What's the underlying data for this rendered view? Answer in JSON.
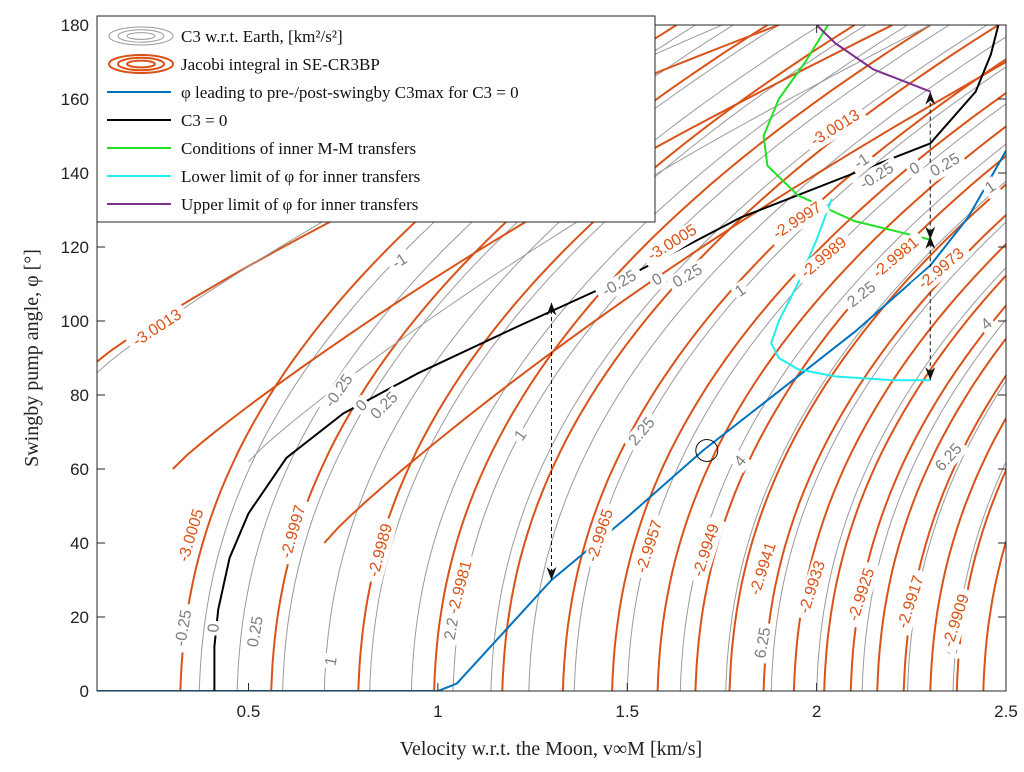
{
  "chart_data": {
    "type": "line",
    "xlabel": "Velocity w.r.t. the Moon, v∞M [km/s]",
    "ylabel": "Swingby pump angle, φ [°]",
    "xlim": [
      0.1,
      2.5
    ],
    "ylim": [
      0,
      180
    ],
    "x_ticks": [
      0.5,
      1,
      1.5,
      2,
      2.5
    ],
    "x_tick_labels": [
      "0.5",
      "1",
      "1.5",
      "2",
      "2.5"
    ],
    "y_ticks": [
      0,
      20,
      40,
      60,
      80,
      100,
      120,
      140,
      160,
      180
    ],
    "y_tick_labels": [
      "0",
      "20",
      "40",
      "60",
      "80",
      "100",
      "120",
      "140",
      "160",
      "180"
    ],
    "grid": false,
    "legend_position": "top-left",
    "legend": [
      {
        "label": "C3 w.r.t. Earth, [km²/s²]",
        "style": "gray concentric contours"
      },
      {
        "label": "Jacobi integral in SE-CR3BP",
        "style": "orange concentric contours"
      },
      {
        "label": "φ leading to pre-/post-swingby C3max for C3 = 0",
        "style": "blue line"
      },
      {
        "label": "C3 = 0",
        "style": "black line"
      },
      {
        "label": "Conditions of inner M-M transfers",
        "style": "green line"
      },
      {
        "label": "Lower limit of φ for inner transfers",
        "style": "cyan line"
      },
      {
        "label": "Upper limit of φ for inner transfers",
        "style": "purple line"
      }
    ],
    "colors": {
      "c3_contours": "#9a9a9a",
      "jacobi_contours": "#d95319",
      "phi_cmax": "#0072bd",
      "c3_zero": "#000000",
      "inner_conditions": "#22e022",
      "lower_limit": "#22eeee",
      "upper_limit": "#7e2f8e",
      "jacobi_label": "#d95319",
      "c3_label": "#808080"
    },
    "series": [
      {
        "name": "φ leading to pre-/post-swingby C3max for C3 = 0",
        "x": [
          0.1,
          1.0,
          1.05,
          1.3,
          1.5,
          1.7,
          1.9,
          2.1,
          2.3,
          2.4,
          2.45,
          2.5
        ],
        "y": [
          0,
          0,
          2,
          30,
          47,
          65,
          81,
          97,
          115,
          128,
          137,
          146
        ]
      },
      {
        "name": "C3 = 0",
        "x": [
          0.41,
          0.41,
          0.42,
          0.45,
          0.5,
          0.6,
          0.75,
          0.95,
          1.2,
          1.5,
          1.8,
          2.1,
          2.3,
          2.42,
          2.46,
          2.48
        ],
        "y": [
          0,
          12,
          22,
          36,
          48,
          63,
          75,
          86,
          98,
          112,
          128,
          140,
          148,
          162,
          172,
          180
        ]
      },
      {
        "name": "Conditions of inner M-M transfers",
        "x": [
          2.03,
          1.97,
          1.9,
          1.86,
          1.87,
          1.95,
          2.1,
          2.3
        ],
        "y": [
          180,
          170,
          160,
          150,
          142,
          134,
          127,
          122
        ]
      },
      {
        "name": "Lower limit of φ for inner transfers",
        "x": [
          2.04,
          2.0,
          1.95,
          1.9,
          1.88,
          1.9,
          1.95,
          2.05,
          2.2,
          2.3
        ],
        "y": [
          133,
          122,
          110,
          100,
          94,
          90,
          87,
          85,
          84,
          84
        ]
      },
      {
        "name": "Upper limit of φ for inner transfers",
        "x": [
          2.0,
          2.05,
          2.15,
          2.3
        ],
        "y": [
          180,
          175,
          168,
          162
        ]
      }
    ],
    "arrows": [
      {
        "x": 1.3,
        "y1": 30,
        "y2": 105
      },
      {
        "x": 2.3,
        "y1": 84,
        "y2": 123
      },
      {
        "x": 2.3,
        "y1": 122,
        "y2": 162
      }
    ],
    "marker": {
      "x": 1.71,
      "y": 65
    },
    "jacobi_contour_labels": [
      {
        "text": "-3.0013",
        "x": 2.05,
        "y": 152,
        "angle": -32
      },
      {
        "text": "-3.0013",
        "x": 0.26,
        "y": 98,
        "angle": -33
      },
      {
        "text": "-3.0005",
        "x": 1.62,
        "y": 121,
        "angle": -32
      },
      {
        "text": "-3.0005",
        "x": 0.35,
        "y": 42,
        "angle": -73
      },
      {
        "text": "-2.9997",
        "x": 1.95,
        "y": 127,
        "angle": -33
      },
      {
        "text": "-2.9997",
        "x": 0.62,
        "y": 43,
        "angle": -74
      },
      {
        "text": "-2.9989",
        "x": 2.02,
        "y": 117,
        "angle": -40
      },
      {
        "text": "-2.9989",
        "x": 0.85,
        "y": 38,
        "angle": -75
      },
      {
        "text": "-2.9981",
        "x": 2.21,
        "y": 117,
        "angle": -40
      },
      {
        "text": "-2.9981",
        "x": 1.06,
        "y": 28,
        "angle": -75
      },
      {
        "text": "-2.9973",
        "x": 2.33,
        "y": 114,
        "angle": -40
      },
      {
        "text": "-2.9965",
        "x": 1.43,
        "y": 42,
        "angle": -72
      },
      {
        "text": "-2.9957",
        "x": 1.56,
        "y": 39,
        "angle": -72
      },
      {
        "text": "-2.9949",
        "x": 1.71,
        "y": 38,
        "angle": -72
      },
      {
        "text": "-2.9941",
        "x": 1.86,
        "y": 33,
        "angle": -72
      },
      {
        "text": "-2.9933",
        "x": 1.99,
        "y": 28,
        "angle": -72
      },
      {
        "text": "-2.9925",
        "x": 2.12,
        "y": 26,
        "angle": -72
      },
      {
        "text": "-2.9917",
        "x": 2.25,
        "y": 24,
        "angle": -72
      },
      {
        "text": "-2.9909",
        "x": 2.37,
        "y": 19,
        "angle": -72
      }
    ],
    "c3_contour_labels": [
      {
        "text": "-1",
        "x": 0.9,
        "y": 116,
        "angle": -32
      },
      {
        "text": "-1",
        "x": 2.12,
        "y": 143,
        "angle": -32
      },
      {
        "text": "-0.25",
        "x": 0.74,
        "y": 81,
        "angle": -55
      },
      {
        "text": "-0.25",
        "x": 1.48,
        "y": 110,
        "angle": -30
      },
      {
        "text": "-0.25",
        "x": 2.16,
        "y": 139,
        "angle": -32
      },
      {
        "text": "0",
        "x": 0.8,
        "y": 77,
        "angle": -45
      },
      {
        "text": "0",
        "x": 1.58,
        "y": 111,
        "angle": -30
      },
      {
        "text": "0",
        "x": 2.26,
        "y": 141,
        "angle": -30
      },
      {
        "text": "0",
        "x": 0.41,
        "y": 17,
        "angle": -85
      },
      {
        "text": "0.25",
        "x": 0.86,
        "y": 77,
        "angle": -45
      },
      {
        "text": "0.25",
        "x": 1.66,
        "y": 112,
        "angle": -30
      },
      {
        "text": "0.25",
        "x": 2.34,
        "y": 142,
        "angle": -30
      },
      {
        "text": "0.25",
        "x": 0.52,
        "y": 16,
        "angle": -80
      },
      {
        "text": "-0.25",
        "x": 0.33,
        "y": 17,
        "angle": -80
      },
      {
        "text": "1",
        "x": 1.22,
        "y": 69,
        "angle": -55
      },
      {
        "text": "1",
        "x": 1.8,
        "y": 108,
        "angle": -35
      },
      {
        "text": "1",
        "x": 2.46,
        "y": 136,
        "angle": -35
      },
      {
        "text": "1",
        "x": 0.72,
        "y": 8,
        "angle": -80
      },
      {
        "text": "2.25",
        "x": 1.54,
        "y": 70,
        "angle": -50
      },
      {
        "text": "2.25",
        "x": 2.12,
        "y": 107,
        "angle": -38
      },
      {
        "text": "2.25",
        "x": 1.04,
        "y": 18,
        "angle": -80
      },
      {
        "text": "4",
        "x": 1.8,
        "y": 62,
        "angle": -50
      },
      {
        "text": "4",
        "x": 2.45,
        "y": 99,
        "angle": -40
      },
      {
        "text": "6.25",
        "x": 1.86,
        "y": 13,
        "angle": -80
      },
      {
        "text": "6.25",
        "x": 2.35,
        "y": 63,
        "angle": -48
      },
      {
        "text": "9",
        "x": 2.36,
        "y": 11,
        "angle": -80
      }
    ]
  }
}
